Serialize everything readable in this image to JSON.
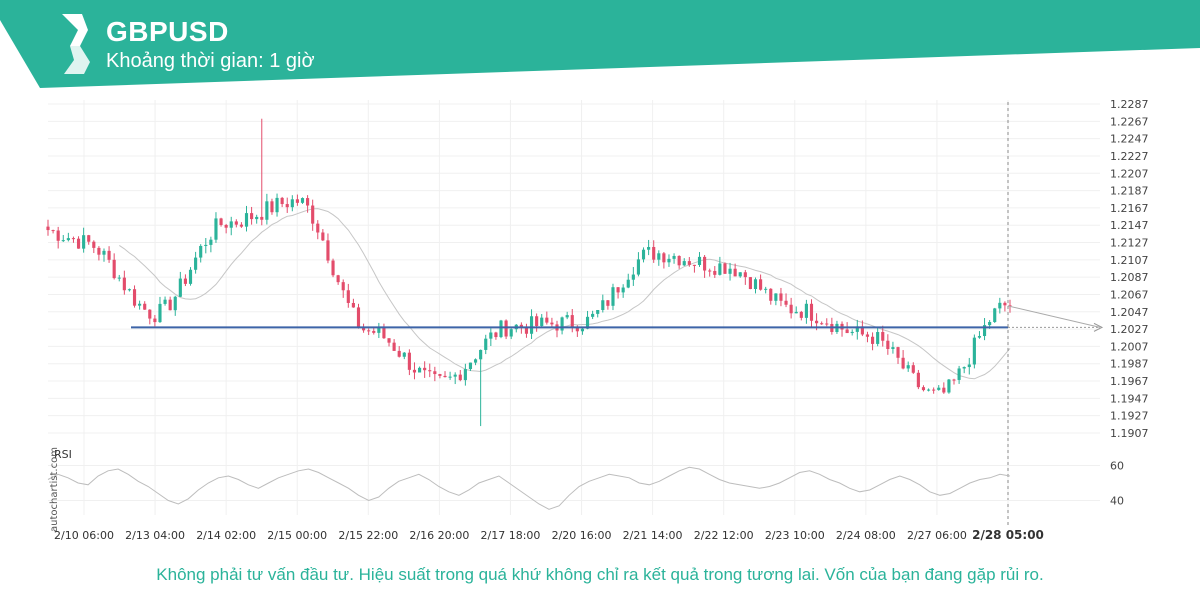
{
  "header": {
    "symbol": "GBPUSD",
    "interval_label": "Khoảng thời gian: 1 giờ",
    "brand_color": "#2bb39a"
  },
  "watermark": "autochartist.com",
  "disclaimer": "Không phải tư vấn đầu tư. Hiệu suất trong quá khứ không chỉ ra kết quả trong tương lai. Vốn của bạn đang gặp rủi ro.",
  "chart_data": {
    "type": "candlestick",
    "price_axis": {
      "ticks": [
        "1.2287",
        "1.2267",
        "1.2247",
        "1.2227",
        "1.2207",
        "1.2187",
        "1.2167",
        "1.2147",
        "1.2127",
        "1.2107",
        "1.2087",
        "1.2067",
        "1.2047",
        "1.2027",
        "1.2007",
        "1.1987",
        "1.1967",
        "1.1947",
        "1.1927",
        "1.1907"
      ],
      "range": [
        1.1895,
        1.2295
      ]
    },
    "time_axis": {
      "ticks": [
        "2/10 06:00",
        "2/13 04:00",
        "2/14 02:00",
        "2/15 00:00",
        "2/15 22:00",
        "2/16 20:00",
        "2/17 18:00",
        "2/20 16:00",
        "2/21 14:00",
        "2/22 12:00",
        "2/23 10:00",
        "2/24 08:00",
        "2/27 06:00",
        "2/28 05:00"
      ],
      "highlighted": "2/28 05:00"
    },
    "close_anchors": [
      {
        "time": "2/10 06:00",
        "close": 1.2127
      },
      {
        "time": "2/13 04:00",
        "close": 1.2045
      },
      {
        "time": "2/14 02:00",
        "close": 1.215
      },
      {
        "time": "2/15 00:00",
        "close": 1.2175
      },
      {
        "time": "2/15 22:00",
        "close": 1.2025
      },
      {
        "time": "2/16 20:00",
        "close": 1.1965
      },
      {
        "time": "2/17 18:00",
        "close": 1.203
      },
      {
        "time": "2/20 16:00",
        "close": 1.2035
      },
      {
        "time": "2/21 14:00",
        "close": 1.2115
      },
      {
        "time": "2/22 12:00",
        "close": 1.21
      },
      {
        "time": "2/23 10:00",
        "close": 1.205
      },
      {
        "time": "2/24 08:00",
        "close": 1.202
      },
      {
        "time": "2/27 06:00",
        "close": 1.195
      },
      {
        "time": "2/28 05:00",
        "close": 1.2055
      }
    ],
    "extreme_high": 1.227,
    "extreme_low": 1.1915,
    "support_level": 1.2029,
    "projection_target": 1.2029,
    "rsi": {
      "label": "RSI",
      "ticks": [
        "60",
        "40"
      ],
      "range": [
        30,
        70
      ],
      "values": [
        52,
        55,
        53,
        50,
        49,
        54,
        57,
        58,
        55,
        51,
        48,
        44,
        40,
        38,
        41,
        46,
        50,
        53,
        54,
        52,
        49,
        47,
        50,
        53,
        55,
        57,
        58,
        56,
        53,
        50,
        47,
        43,
        40,
        42,
        47,
        51,
        53,
        55,
        52,
        48,
        45,
        43,
        46,
        50,
        52,
        54,
        50,
        46,
        42,
        38,
        35,
        37,
        43,
        48,
        51,
        53,
        55,
        54,
        53,
        50,
        49,
        51,
        54,
        57,
        59,
        58,
        55,
        52,
        50,
        49,
        48,
        47,
        48,
        50,
        53,
        56,
        57,
        55,
        52,
        50,
        47,
        45,
        46,
        49,
        52,
        54,
        52,
        49,
        45,
        43,
        44,
        47,
        50,
        52,
        53,
        55,
        54
      ]
    },
    "colors": {
      "up": "#2bb39a",
      "down": "#e34c6b",
      "support": "#3d64a8",
      "ma": "#c6c6c6",
      "rsi": "#bdbdbd"
    }
  }
}
